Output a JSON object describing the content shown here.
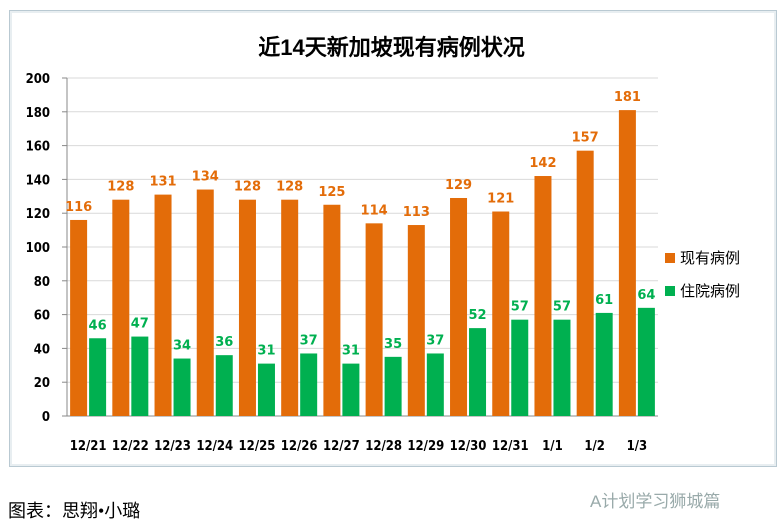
{
  "chart_data": {
    "type": "bar",
    "title": "近14天新加坡现有病例状况",
    "categories": [
      "12/21",
      "12/22",
      "12/23",
      "12/24",
      "12/25",
      "12/26",
      "12/27",
      "12/28",
      "12/29",
      "12/30",
      "12/31",
      "1/1",
      "1/2",
      "1/3"
    ],
    "series": [
      {
        "name": "现有病例",
        "color": "#E36C09",
        "values": [
          116,
          128,
          131,
          134,
          128,
          128,
          125,
          114,
          113,
          129,
          121,
          142,
          157,
          181
        ]
      },
      {
        "name": "住院病例",
        "color": "#00B050",
        "values": [
          46,
          47,
          34,
          36,
          31,
          37,
          31,
          35,
          37,
          52,
          57,
          57,
          61,
          64
        ]
      }
    ],
    "ylim": [
      0,
      200
    ],
    "yticks": [
      0,
      20,
      40,
      60,
      80,
      100,
      120,
      140,
      160,
      180,
      200
    ],
    "grid": true,
    "legend": "right",
    "xlabel": "",
    "ylabel": ""
  },
  "caption": "图表：思翔•小璐",
  "watermark": "A计划学习狮城篇"
}
